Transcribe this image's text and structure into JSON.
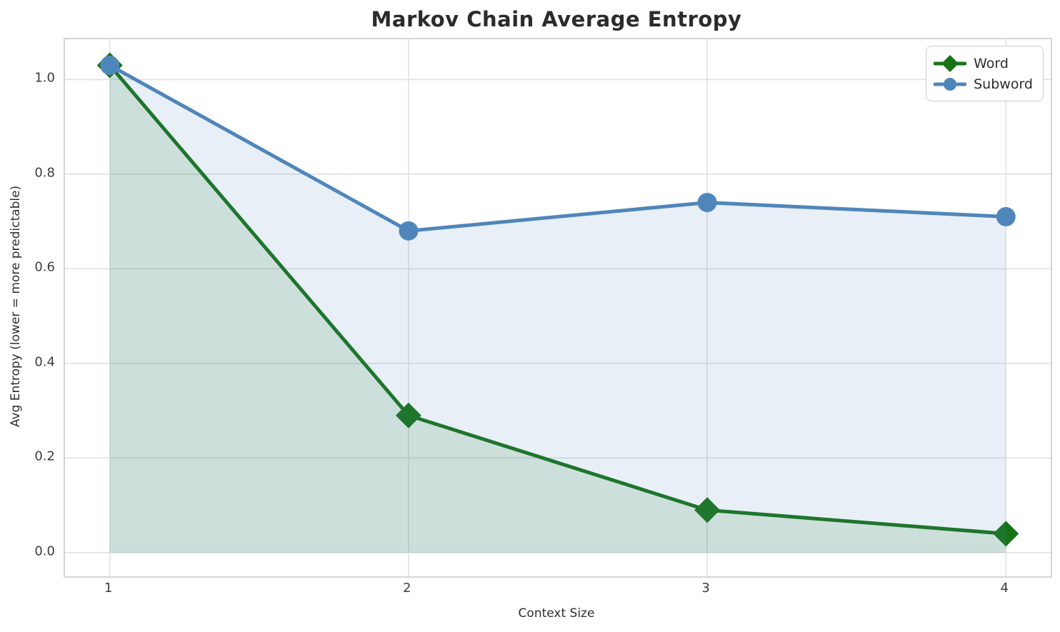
{
  "chart_data": {
    "type": "line",
    "title": "Markov Chain Average Entropy",
    "xlabel": "Context Size",
    "ylabel": "Avg Entropy (lower = more predictable)",
    "x": [
      1,
      2,
      3,
      4
    ],
    "series": [
      {
        "name": "Word",
        "values": [
          1.03,
          0.29,
          0.09,
          0.04
        ],
        "color": "#177317",
        "marker": "diamond",
        "fill": true
      },
      {
        "name": "Subword",
        "values": [
          1.03,
          0.68,
          0.74,
          0.71
        ],
        "color": "#4f86ba",
        "marker": "circle",
        "fill": true
      }
    ],
    "xticks": [
      1,
      2,
      3,
      4
    ],
    "xticklabels": [
      "1",
      "2",
      "3",
      "4"
    ],
    "yticks": [
      0.0,
      0.2,
      0.4,
      0.6,
      0.8,
      1.0
    ],
    "yticklabels": [
      "0.0",
      "0.2",
      "0.4",
      "0.6",
      "0.8",
      "1.0"
    ],
    "xlim": [
      0.85,
      4.15
    ],
    "ylim": [
      -0.05,
      1.085
    ],
    "grid": true,
    "grid_color": "#e4e4e4",
    "spine_color": "#d5d5d5",
    "fill_baseline": 0,
    "fill_opacity": 0.13,
    "line_width": 5,
    "legend_position": "upper right"
  }
}
